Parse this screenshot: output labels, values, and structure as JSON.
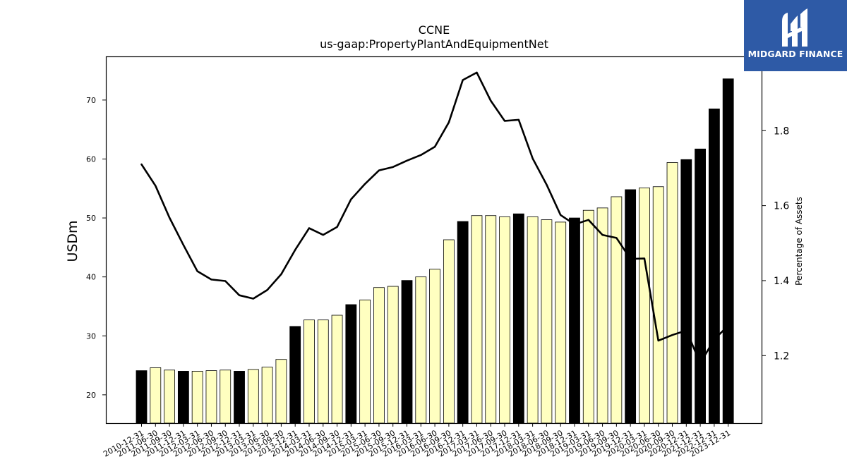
{
  "chart_data": {
    "type": "bar",
    "title": "CCNE",
    "subtitle": "us-gaap:PropertyPlantAndEquipmentNet",
    "ylabel": "USDm",
    "y2label": "Percentage of Assets",
    "ylim": [
      15.2,
      77.4
    ],
    "y2lim": [
      1.02,
      1.998
    ],
    "yticks": [
      20,
      30,
      40,
      50,
      60,
      70
    ],
    "y2ticks": [
      1.2,
      1.4,
      1.6,
      1.8
    ],
    "categories": [
      "2010-12-31",
      "2011-06-30",
      "2011-09-30",
      "2011-12-31",
      "2012-03-31",
      "2012-06-30",
      "2012-09-30",
      "2012-12-31",
      "2013-03-31",
      "2013-06-30",
      "2013-09-30",
      "2013-12-31",
      "2014-03-31",
      "2014-06-30",
      "2014-09-30",
      "2014-12-31",
      "2015-03-31",
      "2015-06-30",
      "2015-09-30",
      "2015-12-31",
      "2016-03-31",
      "2016-06-30",
      "2016-09-30",
      "2016-12-31",
      "2017-03-31",
      "2017-06-30",
      "2017-09-30",
      "2017-12-31",
      "2018-03-31",
      "2018-06-30",
      "2018-09-30",
      "2018-12-31",
      "2019-03-31",
      "2019-06-30",
      "2019-09-30",
      "2019-12-31",
      "2020-03-31",
      "2020-06-30",
      "2020-09-30",
      "2020-12-31",
      "2021-12-31",
      "2022-12-31",
      "2023-12-31"
    ],
    "series": [
      {
        "type": "bar",
        "values": [
          24.1,
          24.6,
          24.2,
          24.0,
          24.0,
          24.1,
          24.2,
          24.0,
          24.3,
          24.7,
          26.0,
          31.6,
          32.7,
          32.7,
          33.5,
          35.3,
          36.1,
          38.2,
          38.4,
          39.4,
          40.0,
          41.3,
          46.3,
          49.4,
          50.4,
          50.4,
          50.2,
          50.7,
          50.2,
          49.7,
          49.3,
          50.0,
          51.3,
          51.7,
          53.6,
          54.8,
          55.1,
          55.3,
          59.4,
          59.9,
          61.7,
          68.5,
          73.6
        ],
        "year_end": [
          true,
          false,
          false,
          true,
          false,
          false,
          false,
          true,
          false,
          false,
          false,
          true,
          false,
          false,
          false,
          true,
          false,
          false,
          false,
          true,
          false,
          false,
          false,
          true,
          false,
          false,
          false,
          true,
          false,
          false,
          false,
          true,
          false,
          false,
          false,
          true,
          false,
          false,
          false,
          true,
          true,
          true,
          true
        ],
        "colors": {
          "year_end": "#000000",
          "quarter": "#ffffc0",
          "edge": "#000000"
        }
      },
      {
        "type": "line",
        "axis": "right",
        "color": "#000000",
        "values": [
          1.71,
          1.653,
          1.568,
          1.495,
          1.425,
          1.403,
          1.399,
          1.361,
          1.352,
          1.375,
          1.417,
          1.482,
          1.54,
          1.522,
          1.543,
          1.617,
          1.658,
          1.694,
          1.703,
          1.72,
          1.735,
          1.757,
          1.822,
          1.935,
          1.955,
          1.88,
          1.826,
          1.829,
          1.726,
          1.656,
          1.575,
          1.55,
          1.562,
          1.522,
          1.514,
          1.458,
          1.459,
          1.24,
          1.255,
          1.267,
          1.18,
          1.243,
          1.28
        ]
      }
    ],
    "grid": false,
    "legend": "none"
  },
  "logo": {
    "text": "MIDGARD FINANCE"
  }
}
